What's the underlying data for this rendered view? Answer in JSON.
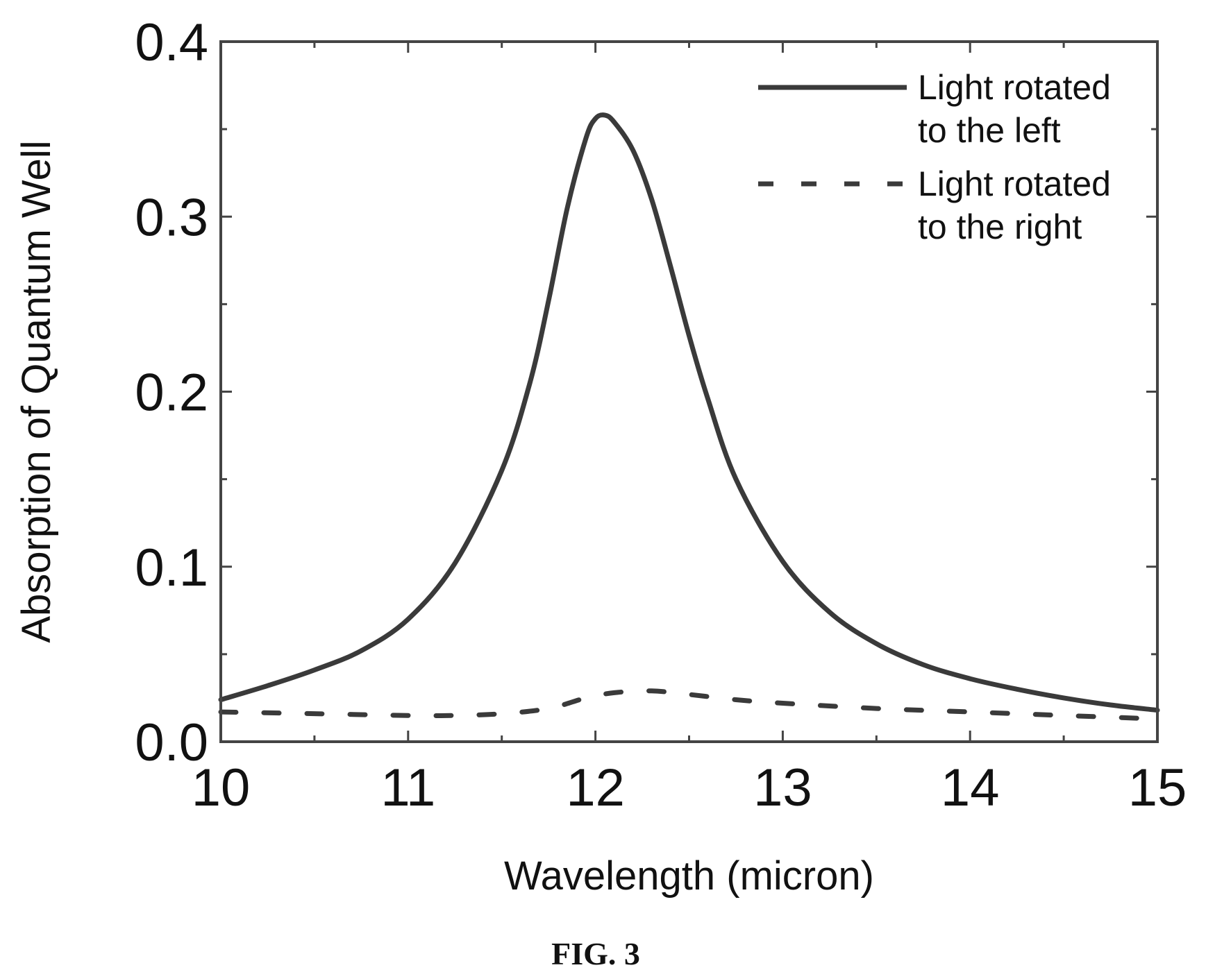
{
  "chart_data": {
    "type": "line",
    "xlabel": "Wavelength (micron)",
    "ylabel": "Absorption of Quantum Well",
    "xlim": [
      10,
      15
    ],
    "ylim": [
      0,
      0.4
    ],
    "x_ticks": [
      "10",
      "11",
      "12",
      "13",
      "14",
      "15"
    ],
    "y_ticks": [
      "0.0",
      "0.1",
      "0.2",
      "0.3",
      "0.4"
    ],
    "grid": false,
    "legend_position": "top-right",
    "series": [
      {
        "name_lines": [
          "Light rotated",
          "to the left"
        ],
        "style": "solid",
        "x": [
          10.0,
          10.25,
          10.5,
          10.75,
          11.0,
          11.25,
          11.5,
          11.65,
          11.75,
          11.85,
          11.95,
          12.0,
          12.05,
          12.1,
          12.2,
          12.3,
          12.4,
          12.5,
          12.6,
          12.75,
          13.0,
          13.25,
          13.5,
          13.75,
          14.0,
          14.25,
          14.5,
          14.75,
          15.0
        ],
        "y": [
          0.024,
          0.032,
          0.041,
          0.052,
          0.07,
          0.102,
          0.155,
          0.205,
          0.252,
          0.305,
          0.345,
          0.356,
          0.358,
          0.354,
          0.338,
          0.31,
          0.272,
          0.232,
          0.196,
          0.15,
          0.103,
          0.074,
          0.056,
          0.044,
          0.036,
          0.03,
          0.025,
          0.021,
          0.018
        ]
      },
      {
        "name_lines": [
          "Light rotated",
          "to the right"
        ],
        "style": "dashed",
        "x": [
          10.0,
          10.5,
          11.0,
          11.25,
          11.5,
          11.75,
          11.95,
          12.1,
          12.3,
          12.5,
          12.75,
          13.0,
          13.5,
          14.0,
          14.5,
          15.0
        ],
        "y": [
          0.017,
          0.016,
          0.015,
          0.015,
          0.016,
          0.019,
          0.025,
          0.028,
          0.029,
          0.027,
          0.024,
          0.022,
          0.019,
          0.017,
          0.015,
          0.013
        ]
      }
    ]
  },
  "caption": "FIG. 3"
}
